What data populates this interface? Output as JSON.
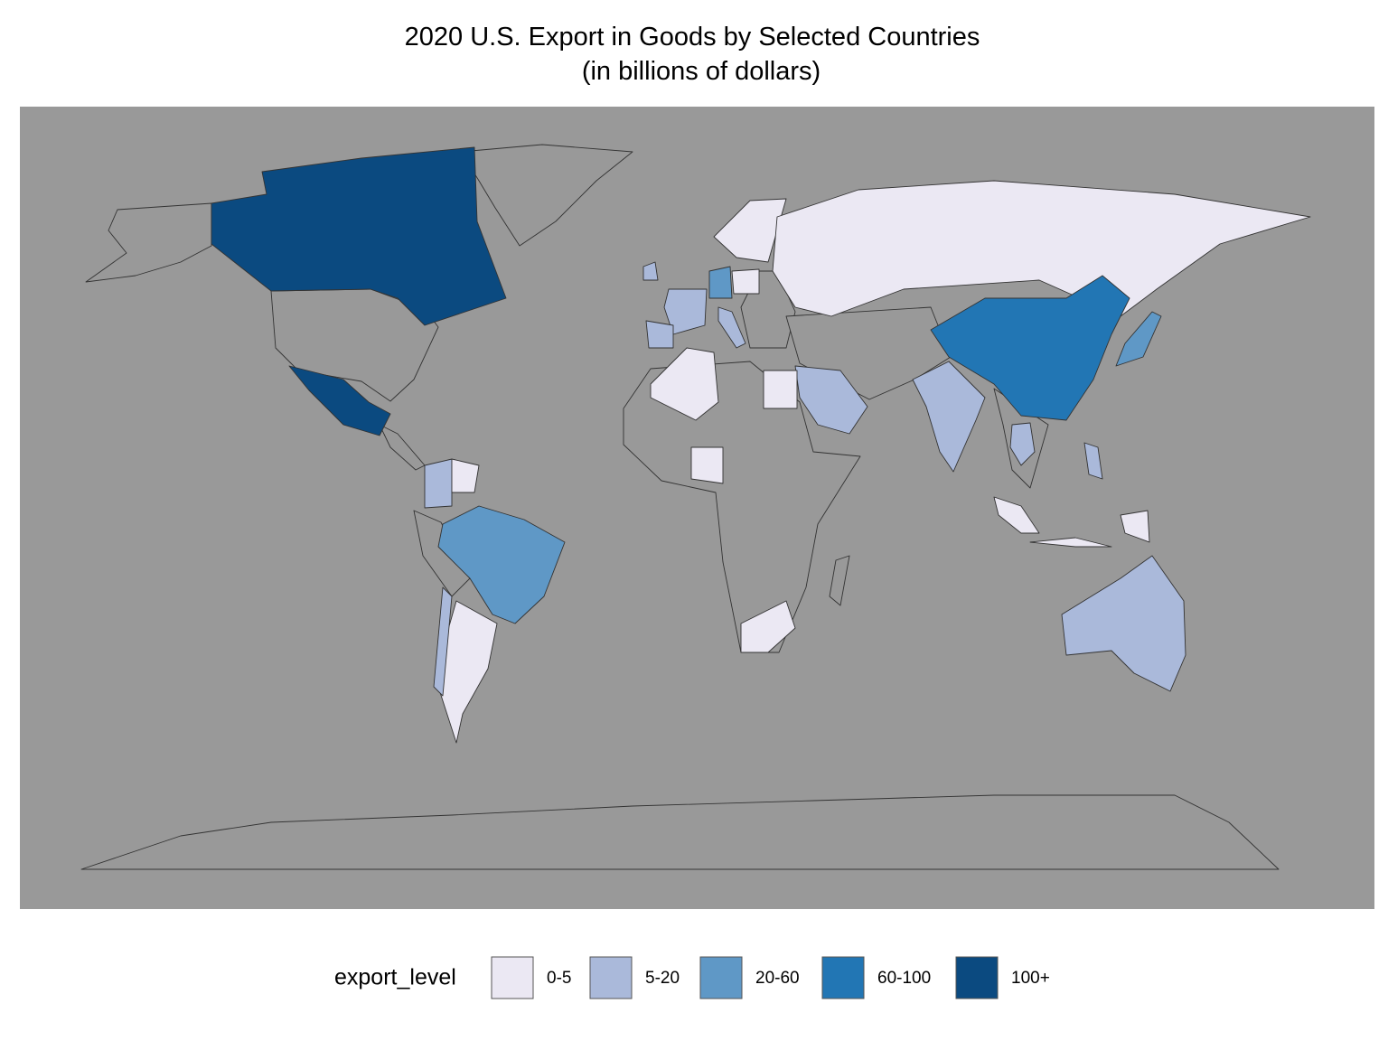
{
  "map": {
    "title": "2020 U.S. Export in Goods by Selected Countries",
    "subtitle": "(in billions of dollars)",
    "legend": {
      "title": "export_level",
      "items": [
        {
          "label": "0-5",
          "color": "#ebe8f3"
        },
        {
          "label": "5-20",
          "color": "#aab9da"
        },
        {
          "label": "20-60",
          "color": "#5f98c6"
        },
        {
          "label": "60-100",
          "color": "#2276b4"
        },
        {
          "label": "100+",
          "color": "#0b4a80"
        }
      ]
    }
  }
}
